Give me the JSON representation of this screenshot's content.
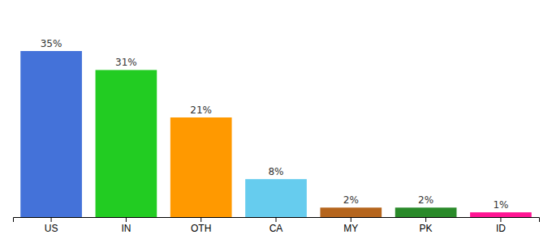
{
  "chart_data": {
    "type": "bar",
    "categories": [
      "US",
      "IN",
      "OTH",
      "CA",
      "MY",
      "PK",
      "ID"
    ],
    "values": [
      35,
      31,
      21,
      8,
      2,
      2,
      1
    ],
    "value_labels": [
      "35%",
      "31%",
      "21%",
      "8%",
      "2%",
      "2%",
      "1%"
    ],
    "colors": [
      "#4472d9",
      "#22cc22",
      "#ff9900",
      "#66ccee",
      "#b5651d",
      "#2a8a2a",
      "#ff1493"
    ],
    "ylim": [
      0,
      42
    ],
    "data_labels": true,
    "tick_labels": "x",
    "grid": false
  }
}
